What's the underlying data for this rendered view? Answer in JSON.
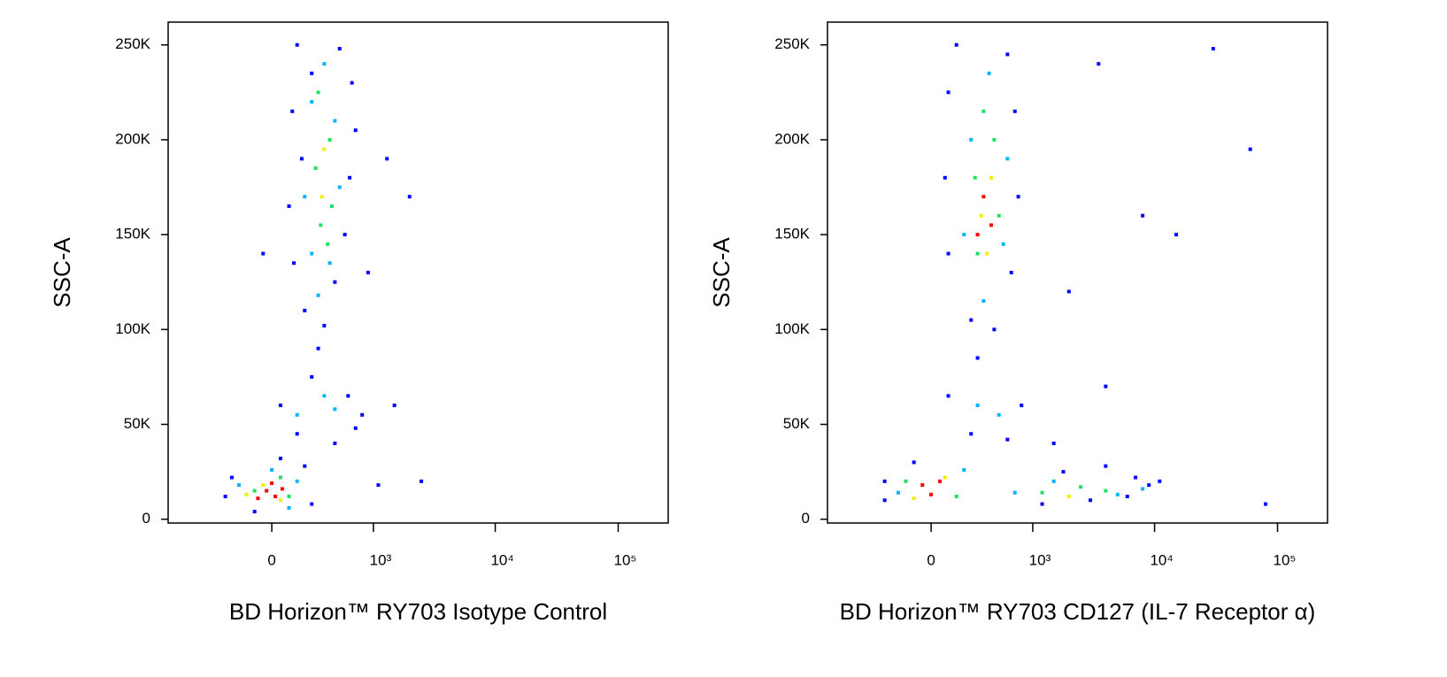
{
  "chart_data": [
    {
      "type": "scatter",
      "xlabel": "BD Horizon™ RY703 Isotype Control",
      "ylabel": "SSC-A",
      "xscale": "asinh",
      "x_linear_width": 305,
      "xlim": [
        -1040,
        255000
      ],
      "ylim": [
        -2000,
        262000
      ],
      "xticks": [
        0,
        {
          "value": 1000,
          "label": "10³"
        },
        {
          "value": 10000,
          "label": "10⁴"
        },
        {
          "value": 100000,
          "label": "10⁵"
        }
      ],
      "yticks": [
        0,
        {
          "value": 50000,
          "label": "50K"
        },
        {
          "value": 100000,
          "label": "100K"
        },
        {
          "value": 150000,
          "label": "150K"
        },
        {
          "value": 200000,
          "label": "200K"
        },
        {
          "value": 250000,
          "label": "250K"
        }
      ],
      "series": [
        {
          "color": "#0000ff",
          "x": [
            150,
            500,
            250,
            650,
            120,
            700,
            180,
            620,
            100,
            560,
            130,
            450,
            200,
            350,
            300,
            250,
            600,
            50,
            800,
            150,
            450,
            700,
            -300,
            -250,
            250,
            200,
            -100,
            50,
            1500,
            1300,
            2000,
            900,
            2500,
            1100,
            -50
          ],
          "y": [
            250000,
            248000,
            235000,
            230000,
            215000,
            205000,
            190000,
            180000,
            165000,
            150000,
            135000,
            125000,
            110000,
            102000,
            90000,
            75000,
            65000,
            60000,
            55000,
            45000,
            40000,
            48000,
            12000,
            22000,
            8000,
            28000,
            4000,
            32000,
            60000,
            190000,
            170000,
            130000,
            20000,
            18000,
            140000
          ]
        },
        {
          "color": "#00b4ff",
          "x": [
            350,
            250,
            450,
            200,
            500,
            250,
            400,
            300,
            350,
            150,
            450,
            -200,
            150,
            0,
            100
          ],
          "y": [
            240000,
            220000,
            210000,
            170000,
            175000,
            140000,
            135000,
            118000,
            65000,
            55000,
            58000,
            18000,
            20000,
            26000,
            6000
          ]
        },
        {
          "color": "#20e060",
          "x": [
            300,
            400,
            280,
            420,
            320,
            380,
            -100,
            50,
            100
          ],
          "y": [
            225000,
            200000,
            185000,
            165000,
            155000,
            145000,
            15000,
            22000,
            12000
          ]
        },
        {
          "color": "#f0f000",
          "x": [
            350,
            330,
            -50,
            50,
            -150
          ],
          "y": [
            195000,
            170000,
            18000,
            10000,
            13000
          ]
        },
        {
          "color": "#ff0000",
          "x": [
            -30,
            20,
            0,
            -80,
            60
          ],
          "y": [
            15000,
            12000,
            19000,
            11000,
            16000
          ]
        }
      ]
    },
    {
      "type": "scatter",
      "xlabel": "BD Horizon™ RY703 CD127 (IL-7 Receptor α)",
      "ylabel": "SSC-A",
      "xscale": "asinh",
      "x_linear_width": 305,
      "xlim": [
        -1040,
        255000
      ],
      "ylim": [
        -2000,
        262000
      ],
      "xticks": [
        0,
        {
          "value": 1000,
          "label": "10³"
        },
        {
          "value": 10000,
          "label": "10⁴"
        },
        {
          "value": 100000,
          "label": "10⁵"
        }
      ],
      "yticks": [
        0,
        {
          "value": 50000,
          "label": "50K"
        },
        {
          "value": 100000,
          "label": "100K"
        },
        {
          "value": 150000,
          "label": "150K"
        },
        {
          "value": 200000,
          "label": "200K"
        },
        {
          "value": 250000,
          "label": "250K"
        }
      ],
      "series": [
        {
          "color": "#0000ff",
          "x": [
            150,
            600,
            100,
            700,
            80,
            750,
            100,
            650,
            250,
            450,
            300,
            100,
            800,
            250,
            600,
            -300,
            -300,
            1200,
            3000,
            6000,
            9000,
            7000,
            4000,
            1800,
            11000,
            80000,
            30000,
            60000,
            8000,
            15000,
            3500,
            2000,
            4000,
            1500,
            -100
          ],
          "y": [
            250000,
            245000,
            225000,
            215000,
            180000,
            170000,
            140000,
            130000,
            105000,
            100000,
            85000,
            65000,
            60000,
            45000,
            42000,
            20000,
            10000,
            8000,
            10000,
            12000,
            18000,
            22000,
            28000,
            25000,
            20000,
            8000,
            248000,
            195000,
            160000,
            150000,
            240000,
            120000,
            70000,
            40000,
            30000
          ]
        },
        {
          "color": "#00b4ff",
          "x": [
            400,
            250,
            600,
            200,
            550,
            350,
            300,
            500,
            -200,
            200,
            700,
            1500,
            5000,
            8000
          ],
          "y": [
            235000,
            200000,
            190000,
            150000,
            145000,
            115000,
            60000,
            55000,
            14000,
            26000,
            14000,
            20000,
            13000,
            16000
          ]
        },
        {
          "color": "#20e060",
          "x": [
            350,
            450,
            280,
            500,
            300,
            -150,
            150,
            1200,
            2500,
            4000
          ],
          "y": [
            215000,
            200000,
            180000,
            160000,
            140000,
            20000,
            12000,
            14000,
            17000,
            15000
          ]
        },
        {
          "color": "#f0f000",
          "x": [
            420,
            330,
            380,
            -100,
            80,
            2000
          ],
          "y": [
            180000,
            160000,
            140000,
            11000,
            22000,
            12000
          ]
        },
        {
          "color": "#ff0000",
          "x": [
            350,
            420,
            300,
            -50,
            0,
            50
          ],
          "y": [
            170000,
            155000,
            150000,
            18000,
            13000,
            20000
          ]
        }
      ]
    }
  ]
}
